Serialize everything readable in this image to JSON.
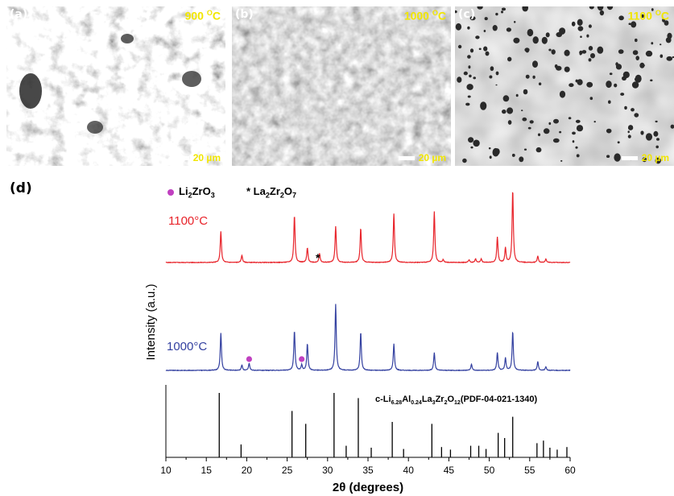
{
  "sem_panels": [
    {
      "label": "(a)",
      "temperature": "900 °C",
      "temp_value": "900 ",
      "temp_deg": "O",
      "temp_unit": "C",
      "scale_bar": "20 µm"
    },
    {
      "label": "(b)",
      "temperature": "1000 °C",
      "temp_value": "1000 ",
      "temp_deg": "O",
      "temp_unit": "C",
      "scale_bar": "20 µm"
    },
    {
      "label": "(c)",
      "temperature": "1100 °C",
      "temp_value": "1100 ",
      "temp_deg": "O",
      "temp_unit": "C",
      "scale_bar": "20 µm"
    }
  ],
  "panel_d": {
    "label": "(d)",
    "legend": {
      "li2zro3": "Li2ZrO3",
      "la2zr2o7": "La2Zr2O7",
      "li2zro3_color": "#c040c0"
    },
    "curve_labels": {
      "t1100": "1100°C",
      "t1000": "1000°C"
    },
    "reference_label": "c-Li6.28Al0.24La3Zr2O12(PDF-04-021-1340)",
    "axis": {
      "xlabel": "2θ (degrees)",
      "ylabel": "Intensity (a.u.)"
    },
    "colors": {
      "t1100": "#e8232a",
      "t1000": "#3340a0",
      "reference": "#000000"
    }
  },
  "chart_data": {
    "type": "line",
    "xlabel": "2θ (degrees)",
    "ylabel": "Intensity (a.u.)",
    "xlim": [
      10,
      60
    ],
    "xticks": [
      10,
      15,
      20,
      25,
      30,
      35,
      40,
      45,
      50,
      55,
      60
    ],
    "series": [
      {
        "name": "1100°C",
        "peaks": [
          [
            16.8,
            0.34
          ],
          [
            19.4,
            0.08
          ],
          [
            25.9,
            0.52
          ],
          [
            27.5,
            0.16
          ],
          [
            29.0,
            0.1
          ],
          [
            31.0,
            0.4
          ],
          [
            34.1,
            0.38
          ],
          [
            38.2,
            0.54
          ],
          [
            43.2,
            0.56
          ],
          [
            44.3,
            0.03
          ],
          [
            47.5,
            0.03
          ],
          [
            48.3,
            0.04
          ],
          [
            49.0,
            0.04
          ],
          [
            51.0,
            0.28
          ],
          [
            52.0,
            0.16
          ],
          [
            52.9,
            0.8
          ],
          [
            56.0,
            0.07
          ],
          [
            57.0,
            0.04
          ]
        ]
      },
      {
        "name": "1000°C",
        "peaks": [
          [
            16.8,
            0.42
          ],
          [
            19.4,
            0.06
          ],
          [
            20.3,
            0.08
          ],
          [
            25.9,
            0.45
          ],
          [
            26.8,
            0.06
          ],
          [
            27.5,
            0.3
          ],
          [
            31.0,
            0.75
          ],
          [
            34.1,
            0.43
          ],
          [
            38.2,
            0.3
          ],
          [
            43.2,
            0.2
          ],
          [
            47.8,
            0.07
          ],
          [
            51.0,
            0.2
          ],
          [
            52.0,
            0.14
          ],
          [
            52.9,
            0.44
          ],
          [
            56.0,
            0.1
          ],
          [
            57.0,
            0.04
          ]
        ]
      },
      {
        "name": "c-Li6.28Al0.24La3Zr2O12(PDF-04-021-1340)",
        "sticks": [
          [
            16.6,
            1.0
          ],
          [
            19.3,
            0.2
          ],
          [
            25.6,
            0.72
          ],
          [
            27.3,
            0.52
          ],
          [
            30.8,
            1.0
          ],
          [
            32.3,
            0.18
          ],
          [
            33.8,
            0.92
          ],
          [
            35.4,
            0.15
          ],
          [
            38.0,
            0.55
          ],
          [
            39.4,
            0.13
          ],
          [
            42.9,
            0.52
          ],
          [
            44.1,
            0.16
          ],
          [
            45.2,
            0.12
          ],
          [
            47.7,
            0.18
          ],
          [
            48.7,
            0.18
          ],
          [
            49.6,
            0.13
          ],
          [
            51.1,
            0.38
          ],
          [
            51.9,
            0.3
          ],
          [
            52.9,
            0.63
          ],
          [
            55.9,
            0.22
          ],
          [
            56.7,
            0.26
          ],
          [
            57.5,
            0.15
          ],
          [
            58.4,
            0.12
          ],
          [
            59.6,
            0.16
          ]
        ]
      }
    ],
    "markers": [
      {
        "label": "Li2ZrO3",
        "symbol": "circle",
        "x": [
          20.3,
          26.8
        ],
        "series": "1000°C"
      },
      {
        "label": "La2Zr2O7",
        "symbol": "star",
        "x": [
          28.8
        ],
        "series": "1100°C"
      }
    ]
  }
}
